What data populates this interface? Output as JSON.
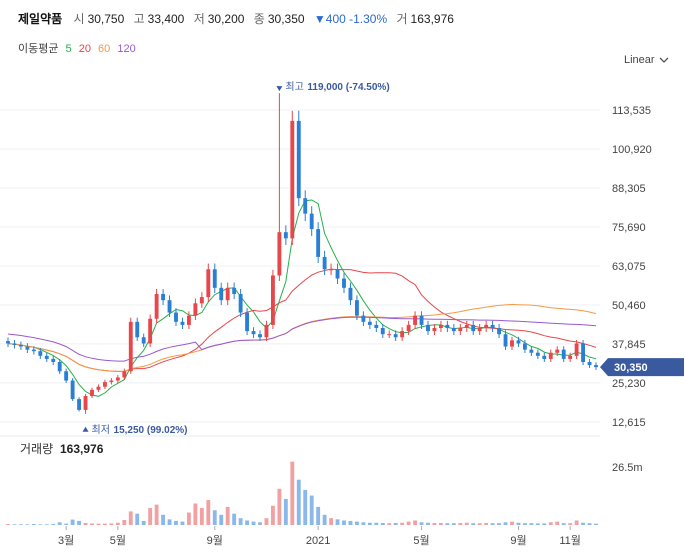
{
  "header": {
    "name": "제일약품",
    "open_label": "시",
    "open": "30,750",
    "high_label": "고",
    "high": "33,400",
    "low_label": "저",
    "low": "30,200",
    "close_label": "종",
    "close": "30,350",
    "change": "▼400 -1.30%",
    "volume_label": "거",
    "volume": "163,976"
  },
  "ma_legend": {
    "label": "이동평균",
    "periods": [
      {
        "label": "5",
        "color": "#27b04a"
      },
      {
        "label": "20",
        "color": "#e8464a"
      },
      {
        "label": "60",
        "color": "#f39a45"
      },
      {
        "label": "120",
        "color": "#9b59d0"
      }
    ]
  },
  "scale_select": {
    "value": "Linear",
    "icon": "chevron-down-icon"
  },
  "price_badge": "30,350",
  "volume_panel": {
    "label": "거래량",
    "value": "163,976",
    "tick": "26.5m"
  },
  "colors": {
    "up": "#e8464a",
    "down": "#2a7fd4",
    "badge": "#3a5aa0",
    "note": "#3a5aa0"
  },
  "chart_data": [
    {
      "type": "candlestick",
      "title": "제일약품",
      "yticks": [
        "113,535",
        "100,920",
        "88,305",
        "75,690",
        "63,075",
        "50,460",
        "37,845",
        "25,230",
        "12,615"
      ],
      "ylim": [
        10000,
        120000
      ],
      "xticks": [
        {
          "label": "3월",
          "x": 9
        },
        {
          "label": "5월",
          "x": 17
        },
        {
          "label": "9월",
          "x": 32
        },
        {
          "label": "2021",
          "x": 48
        },
        {
          "label": "5월",
          "x": 64
        },
        {
          "label": "9월",
          "x": 79
        },
        {
          "label": "11월",
          "x": 87
        }
      ],
      "x_count": 92,
      "last_price": 30350,
      "max_note": {
        "label": "최고",
        "value": "119,000 (-74.50%)",
        "x": 42,
        "price": 119000
      },
      "min_note": {
        "label": "최저",
        "value": "15,250 (99.02%)",
        "x": 12,
        "price": 15250
      },
      "closes": [
        38000,
        37500,
        37000,
        36000,
        35500,
        34000,
        33000,
        32000,
        29000,
        26000,
        20000,
        16500,
        21000,
        23000,
        24000,
        25500,
        26000,
        27000,
        29000,
        45000,
        40000,
        38000,
        46000,
        54000,
        52000,
        48000,
        45000,
        44000,
        47000,
        51000,
        53000,
        62000,
        56000,
        52000,
        56000,
        54000,
        48000,
        42000,
        41000,
        40000,
        44000,
        60000,
        74000,
        72000,
        110000,
        85000,
        80000,
        75000,
        66000,
        62000,
        62000,
        59000,
        56000,
        52000,
        47000,
        45000,
        44000,
        43000,
        41000,
        41000,
        40000,
        42000,
        44000,
        47000,
        44000,
        42000,
        43000,
        44000,
        43000,
        42000,
        43000,
        44000,
        42000,
        43000,
        44000,
        43000,
        41000,
        37000,
        39000,
        38000,
        36000,
        35000,
        34000,
        33000,
        35000,
        36000,
        33000,
        34000,
        38000,
        32000,
        31000,
        30350
      ],
      "volumes_m": [
        0.4,
        0.3,
        0.3,
        0.3,
        0.4,
        0.3,
        0.3,
        0.4,
        1.2,
        0.6,
        2.4,
        1.8,
        0.9,
        0.7,
        0.6,
        0.6,
        0.7,
        1.0,
        2.2,
        6.0,
        5.0,
        1.8,
        7.5,
        9.0,
        4.5,
        2.5,
        1.8,
        1.5,
        5.5,
        9.5,
        7.5,
        11.0,
        6.5,
        4.5,
        8.0,
        5.0,
        3.0,
        2.0,
        1.5,
        1.2,
        3.0,
        8.5,
        16.0,
        11.5,
        28.0,
        20.0,
        15.5,
        13.0,
        8.0,
        4.5,
        3.0,
        2.5,
        2.0,
        1.8,
        1.5,
        1.2,
        1.0,
        1.0,
        0.9,
        0.8,
        0.9,
        1.0,
        1.5,
        2.0,
        1.2,
        1.0,
        0.9,
        0.9,
        0.8,
        0.8,
        0.9,
        1.0,
        0.8,
        0.8,
        0.9,
        0.8,
        0.8,
        1.2,
        1.5,
        1.0,
        0.8,
        0.8,
        0.7,
        0.7,
        1.2,
        1.5,
        0.8,
        0.8,
        2.0,
        1.0,
        0.8,
        0.6
      ]
    }
  ]
}
